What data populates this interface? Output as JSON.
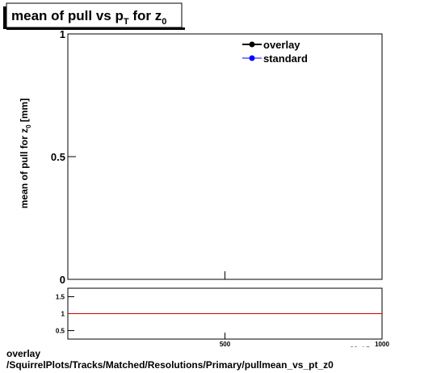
{
  "chart_data": {
    "type": "line",
    "title_parts": [
      "mean of pull vs p",
      "T",
      " for z",
      "0"
    ],
    "ylabel_parts": [
      "mean of pull for z",
      "0",
      " [mm]"
    ],
    "x": [],
    "series": [
      {
        "name": "overlay",
        "color": "#000000",
        "values": []
      },
      {
        "name": "standard",
        "color": "#0000ff",
        "values": []
      }
    ],
    "xlim": [
      0,
      1000
    ],
    "ylim": [
      0,
      1
    ],
    "yticks": [
      0,
      0.5,
      1
    ],
    "ratio": {
      "ylim": [
        0.25,
        1.75
      ],
      "yticks": [
        0.5,
        1,
        1.5
      ],
      "xticks": [
        500,
        1000
      ],
      "xlabel_parts": [
        "p",
        "T",
        " [GeV]"
      ],
      "reference": 1,
      "reference_color": "#cc0000"
    }
  },
  "footer": [
    "overlay",
    "/SquirrelPlots/Tracks/Matched/Resolutions/Primary/pullmean_vs_pt_z0"
  ]
}
